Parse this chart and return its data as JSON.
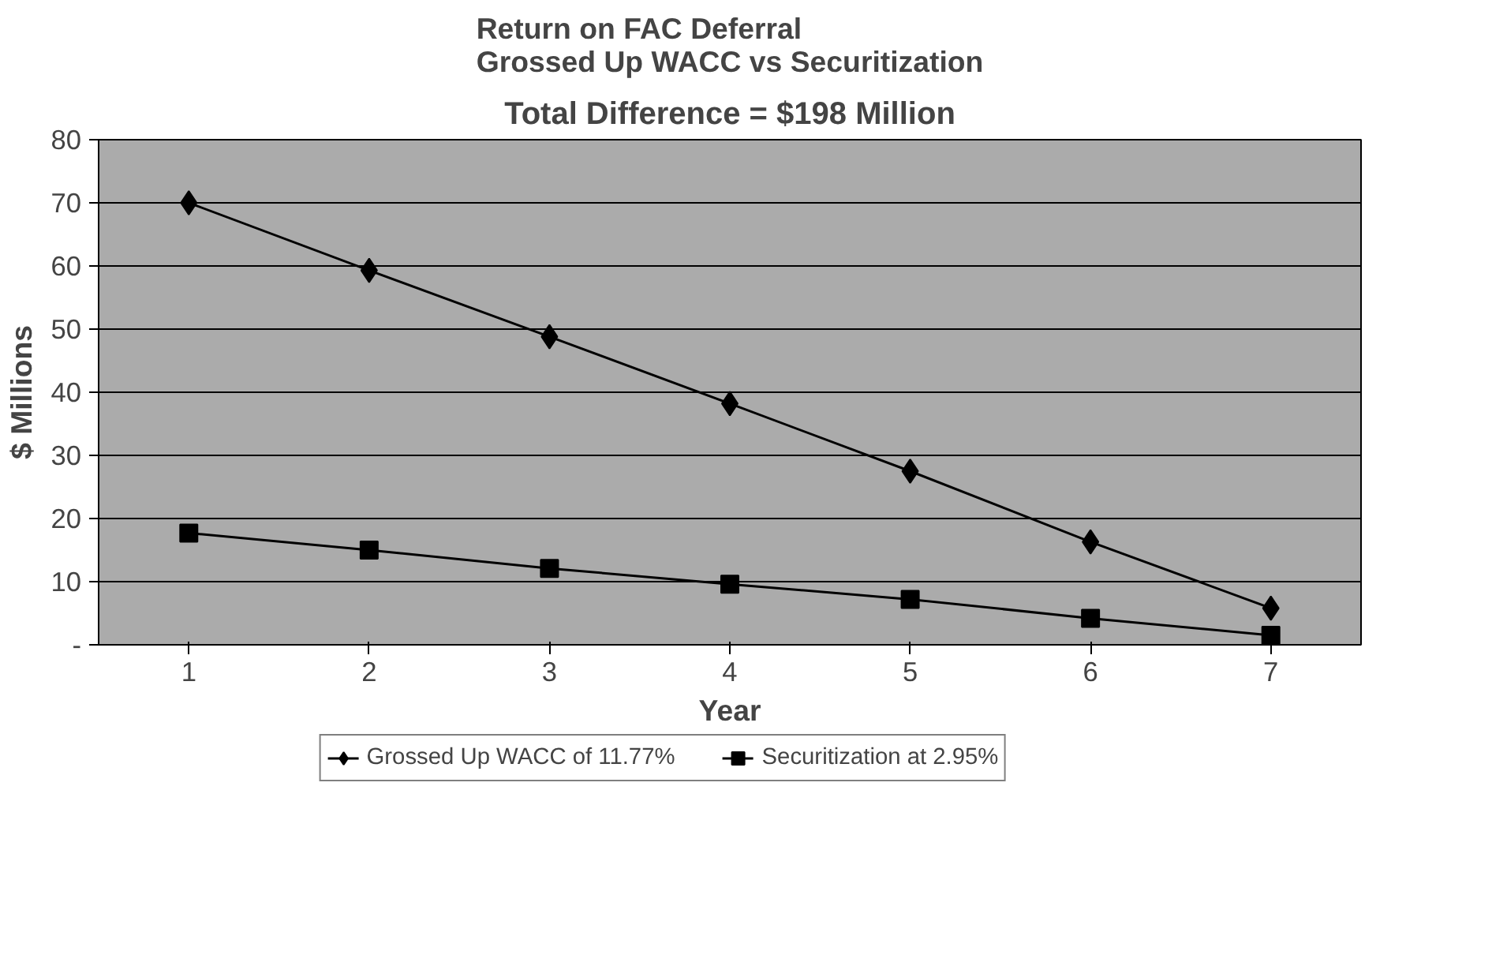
{
  "chart_data": {
    "type": "line",
    "title": "Return on FAC Deferral\nGrossed Up WACC vs Securitization",
    "subtitle": "Total Difference = $198 Million",
    "xlabel": "Year",
    "ylabel": "$ Millions",
    "categories": [
      "1",
      "2",
      "3",
      "4",
      "5",
      "6",
      "7"
    ],
    "series": [
      {
        "name": "Grossed Up WACC of 11.77%",
        "color": "#000000",
        "marker": "diamond",
        "values": [
          70.0,
          59.3,
          48.8,
          38.2,
          27.5,
          16.3,
          5.8
        ]
      },
      {
        "name": "Securitization at 2.95%",
        "color": "#000000",
        "marker": "square",
        "values": [
          17.7,
          15.0,
          12.1,
          9.6,
          7.2,
          4.2,
          1.5
        ]
      }
    ],
    "ylim": [
      0,
      80
    ],
    "yticks": [
      {
        "value": 0,
        "label": "-"
      },
      10,
      20,
      30,
      40,
      50,
      60,
      70,
      80
    ],
    "grid": "y",
    "legend": "bottom",
    "line_style": "solid"
  }
}
